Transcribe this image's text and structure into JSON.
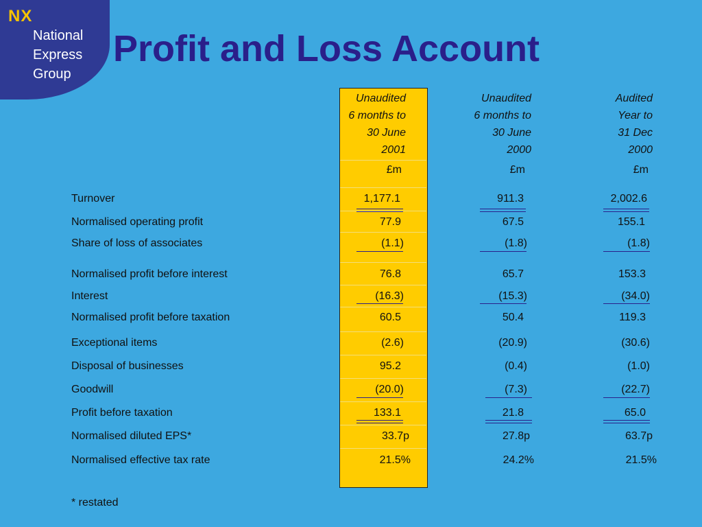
{
  "logo": {
    "mark": "NX",
    "line1": "National",
    "line2": "Express",
    "line3": "Group"
  },
  "title": "Profit and Loss Account",
  "columns": [
    {
      "line1": "Unaudited",
      "line2": "6 months to",
      "line3": "30 June",
      "line4": "2001",
      "unit": "£m"
    },
    {
      "line1": "Unaudited",
      "line2": "6 months to",
      "line3": "30 June",
      "line4": "2000",
      "unit": "£m"
    },
    {
      "line1": "Audited",
      "line2": "Year to",
      "line3": "31 Dec",
      "line4": "2000",
      "unit": "£m"
    }
  ],
  "rows": [
    {
      "label": "Turnover",
      "values": [
        "1,177.1",
        "911.3",
        "2,002.6"
      ]
    },
    {
      "label": "Normalised operating profit",
      "values": [
        "77.9",
        "67.5",
        "155.1"
      ]
    },
    {
      "label": "Share of loss of associates",
      "values": [
        "(1.1)",
        "(1.8)",
        "(1.8)"
      ]
    },
    {
      "label": "Normalised profit before interest",
      "values": [
        "76.8",
        "65.7",
        "153.3"
      ]
    },
    {
      "label": "Interest",
      "values": [
        "(16.3)",
        "(15.3)",
        "(34.0)"
      ]
    },
    {
      "label": "Normalised profit before taxation",
      "values": [
        "60.5",
        "50.4",
        "119.3"
      ]
    },
    {
      "label": "Exceptional items",
      "values": [
        "(2.6)",
        "(20.9)",
        "(30.6)"
      ]
    },
    {
      "label": "Disposal of businesses",
      "values": [
        "95.2",
        "(0.4)",
        "(1.0)"
      ]
    },
    {
      "label": "Goodwill",
      "values": [
        "(20.0)",
        "(7.3)",
        "(22.7)"
      ]
    },
    {
      "label": "Profit before taxation",
      "values": [
        "133.1",
        "21.8",
        "65.0"
      ]
    },
    {
      "label": "Normalised diluted EPS*",
      "values": [
        "33.7p",
        "27.8p",
        "63.7p"
      ]
    },
    {
      "label": "Normalised effective tax rate",
      "values": [
        "21.5%",
        "24.2%",
        "21.5%"
      ]
    }
  ],
  "footnote": "* restated",
  "colors": {
    "background": "#3da8e0",
    "logo_panel": "#2f3a94",
    "logo_mark": "#f6c300",
    "title": "#2a1f8a",
    "highlight": "#ffcc00"
  }
}
